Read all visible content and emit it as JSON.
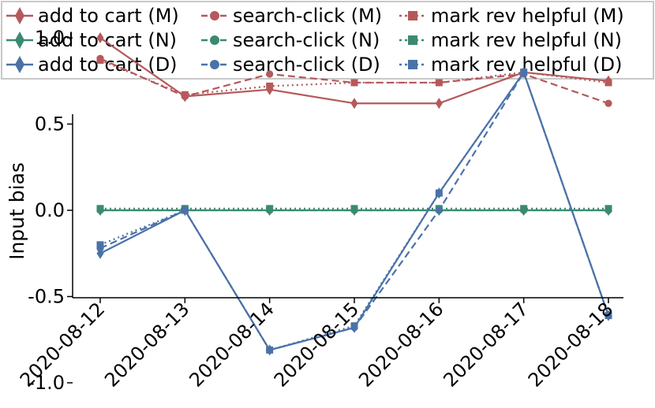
{
  "chart_data": {
    "type": "line",
    "title": "",
    "xlabel": "",
    "ylabel": "Input bias",
    "ylim": [
      -1.0,
      1.2
    ],
    "yticks": [
      "1.0",
      "0.5",
      "0.0",
      "-0.5",
      "-1.0"
    ],
    "categories": [
      "2020-08-12",
      "2020-08-13",
      "2020-08-14",
      "2020-08-15",
      "2020-08-16",
      "2020-08-17",
      "2020-08-18"
    ],
    "grid": false,
    "legend_position": "top",
    "series": [
      {
        "name": "add to cart (M)",
        "color": "#b5595b",
        "line_style": "solid",
        "marker": "diamond",
        "values": [
          1.0,
          0.66,
          0.7,
          0.62,
          0.62,
          0.8,
          0.75
        ]
      },
      {
        "name": "search-click (M)",
        "color": "#b5595b",
        "line_style": "dashed",
        "marker": "circle",
        "values": [
          0.88,
          0.66,
          0.79,
          0.74,
          0.74,
          0.79,
          0.62
        ]
      },
      {
        "name": "mark rev helpful (M)",
        "color": "#b5595b",
        "line_style": "dotted",
        "marker": "square",
        "values": [
          0.87,
          0.67,
          0.72,
          0.74,
          0.74,
          0.8,
          0.74
        ]
      },
      {
        "name": "add to cart (N)",
        "color": "#3a8a72",
        "line_style": "solid",
        "marker": "diamond",
        "values": [
          0.0,
          0.0,
          0.0,
          0.0,
          0.0,
          0.0,
          0.0
        ]
      },
      {
        "name": "search-click (N)",
        "color": "#3a8a72",
        "line_style": "dashed",
        "marker": "circle",
        "values": [
          0.0,
          0.0,
          0.0,
          0.0,
          0.0,
          0.0,
          0.0
        ]
      },
      {
        "name": "mark rev helpful (N)",
        "color": "#3a8a72",
        "line_style": "dotted",
        "marker": "square",
        "values": [
          0.01,
          0.01,
          0.01,
          0.01,
          0.01,
          0.01,
          0.01
        ]
      },
      {
        "name": "add to cart (D)",
        "color": "#4a72a8",
        "line_style": "solid",
        "marker": "diamond",
        "values": [
          -0.25,
          0.0,
          -0.81,
          -0.68,
          0.1,
          0.8,
          -0.61
        ]
      },
      {
        "name": "search-click (D)",
        "color": "#4a72a8",
        "line_style": "dashed",
        "marker": "circle",
        "values": [
          -0.22,
          0.0,
          -0.81,
          -0.68,
          0.0,
          0.8,
          -0.61
        ]
      },
      {
        "name": "mark rev helpful (D)",
        "color": "#4a72a8",
        "line_style": "dotted",
        "marker": "square",
        "values": [
          -0.2,
          0.0,
          -0.81,
          -0.67,
          0.1,
          0.8,
          -0.61
        ]
      }
    ]
  }
}
